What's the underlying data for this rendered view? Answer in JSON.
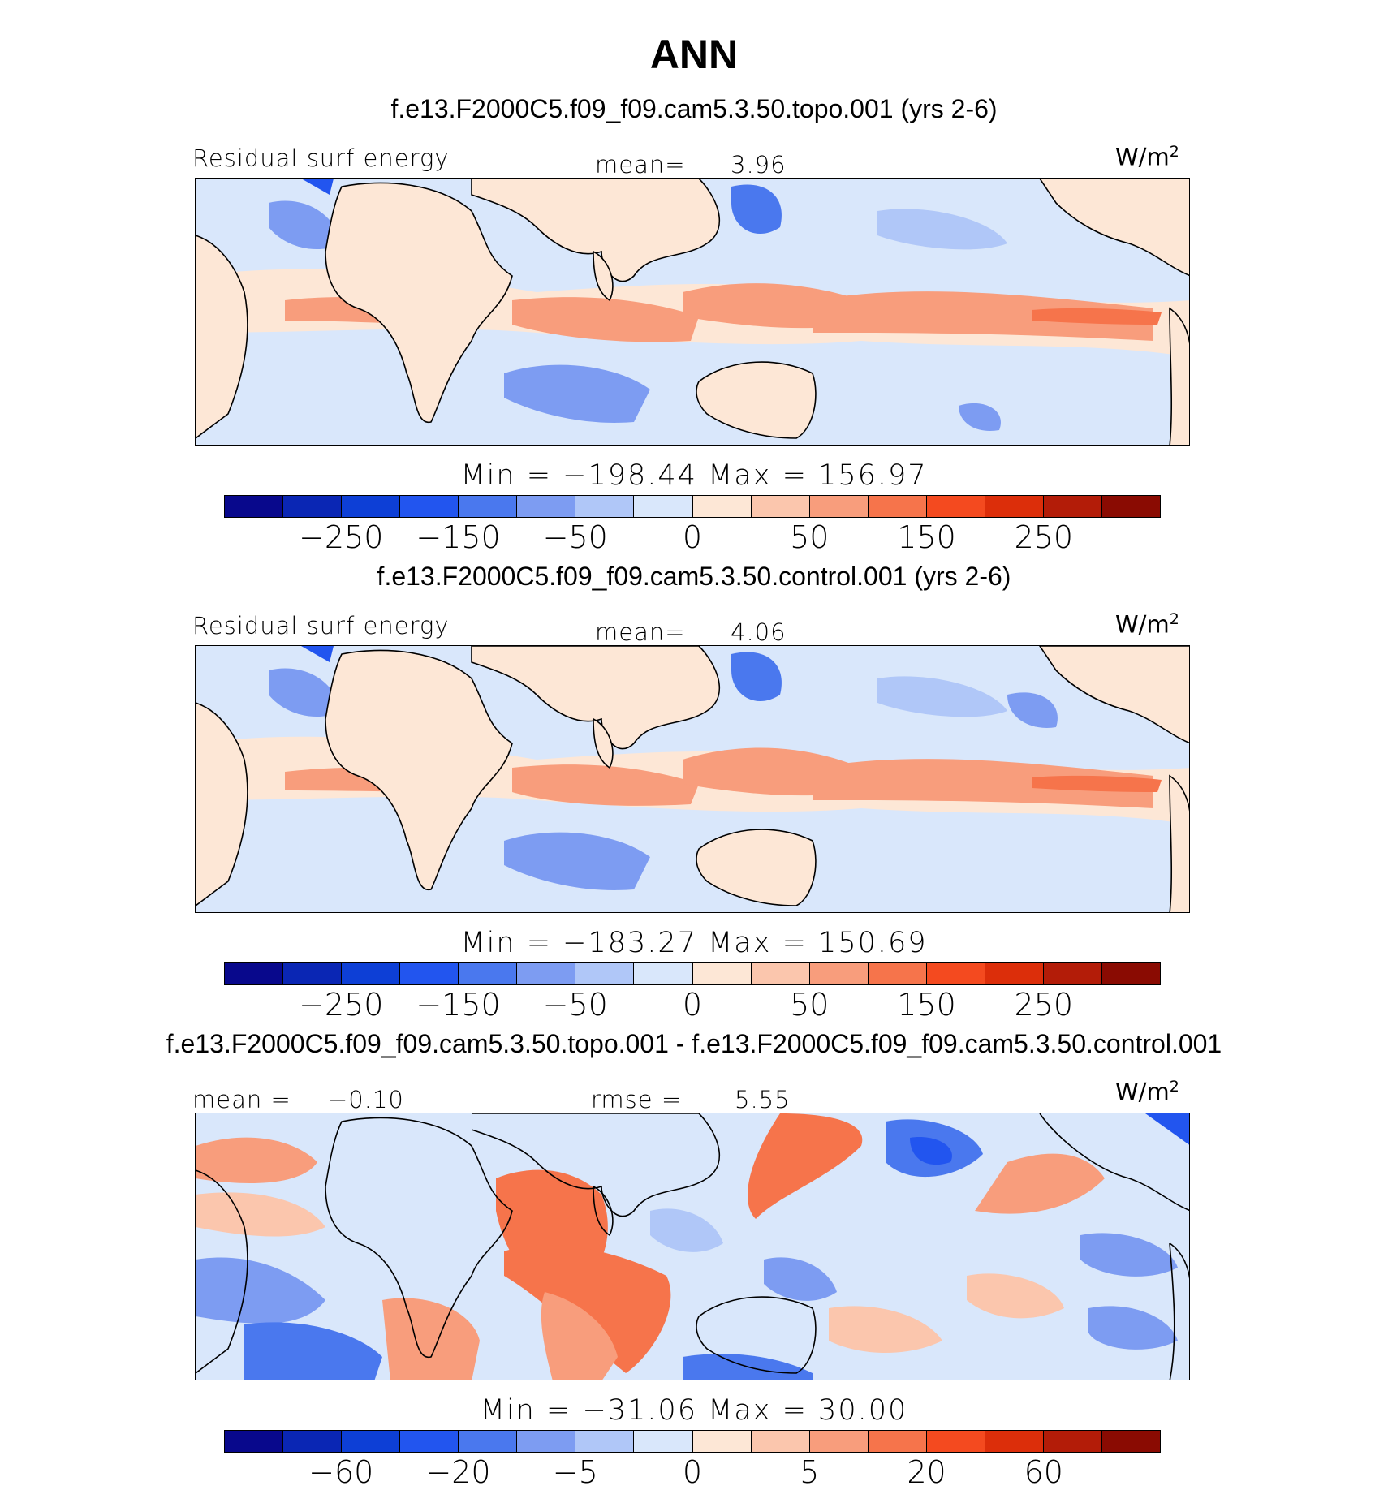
{
  "figure_title": "ANN",
  "palette": [
    "#08088c",
    "#0a26b4",
    "#0d3fd6",
    "#2255ef",
    "#4a78ee",
    "#7d9cf2",
    "#b0c7f8",
    "#d9e7fb",
    "#fde7d6",
    "#fbc6ad",
    "#f89d7c",
    "#f6744b",
    "#f44a1f",
    "#dc2e0a",
    "#b31c08",
    "#8a0b02"
  ],
  "panels": [
    {
      "case_title": "f.e13.F2000C5.f09_f09.cam5.3.50.topo.001 (yrs 2-6)",
      "left_label": "Residual surf energy",
      "center_label": "mean=",
      "center_value": "3.96",
      "units": "W/m",
      "units_sup": "2",
      "min_label": "Min",
      "min_value": "−198.44",
      "max_label": "Max",
      "max_value": "156.97",
      "ticks": [
        "−250",
        "−150",
        "−50",
        "0",
        "50",
        "150",
        "250"
      ]
    },
    {
      "case_title": "f.e13.F2000C5.f09_f09.cam5.3.50.control.001 (yrs 2-6)",
      "left_label": "Residual surf energy",
      "center_label": "mean=",
      "center_value": "4.06",
      "units": "W/m",
      "units_sup": "2",
      "min_label": "Min",
      "min_value": "−183.27",
      "max_label": "Max",
      "max_value": "150.69",
      "ticks": [
        "−250",
        "−150",
        "−50",
        "0",
        "50",
        "150",
        "250"
      ]
    },
    {
      "case_title": "f.e13.F2000C5.f09_f09.cam5.3.50.topo.001 - f.e13.F2000C5.f09_f09.cam5.3.50.control.001",
      "left_label": "mean =",
      "left_value": "−0.10",
      "center_label": "rmse =",
      "center_value": "5.55",
      "units": "W/m",
      "units_sup": "2",
      "min_label": "Min",
      "min_value": "−31.06",
      "max_label": "Max",
      "max_value": "30.00",
      "ticks": [
        "−60",
        "−20",
        "−5",
        "0",
        "5",
        "20",
        "60"
      ]
    }
  ]
}
